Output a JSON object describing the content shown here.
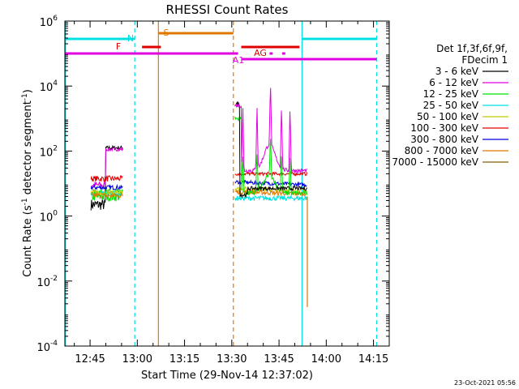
{
  "chart_data": {
    "type": "line",
    "title": "RHESSI Count Rates",
    "xlabel": "Start Time (29-Nov-14 12:37:02)",
    "ylabel_main": "Count Rate (s",
    "ylabel_sup1": "-1",
    "ylabel_mid": " detector segment",
    "ylabel_sup2": "-1",
    "ylabel_end": ")",
    "x_start_minutes": 757,
    "x_end_minutes": 860,
    "x_ticks": [
      {
        "label": "12:45",
        "minutes": 765
      },
      {
        "label": "13:00",
        "minutes": 780
      },
      {
        "label": "13:15",
        "minutes": 795
      },
      {
        "label": "13:30",
        "minutes": 810
      },
      {
        "label": "13:45",
        "minutes": 825
      },
      {
        "label": "14:00",
        "minutes": 840
      },
      {
        "label": "14:15",
        "minutes": 855
      }
    ],
    "ylog": true,
    "ylim_exp": [
      -4,
      6
    ],
    "y_ticks": [
      {
        "base": "10",
        "exp": "-4",
        "value_exp": -4
      },
      {
        "base": "10",
        "exp": "-2",
        "value_exp": -2
      },
      {
        "base": "10",
        "exp": "0",
        "value_exp": 0
      },
      {
        "base": "10",
        "exp": "2",
        "value_exp": 2
      },
      {
        "base": "10",
        "exp": "4",
        "value_exp": 4
      },
      {
        "base": "10",
        "exp": "6",
        "value_exp": 6
      }
    ],
    "legend_header": [
      "Det 1f,3f,6f,9f,",
      "FDecim 1"
    ],
    "series": [
      {
        "name": "3 - 6 keV",
        "color": "#000000"
      },
      {
        "name": "6 - 12 keV",
        "color": "#e000e0"
      },
      {
        "name": "12 - 25 keV",
        "color": "#00e000"
      },
      {
        "name": "25 - 50 keV",
        "color": "#00e0e0"
      },
      {
        "name": "50 - 100 keV",
        "color": "#c8c800"
      },
      {
        "name": "100 - 300 keV",
        "color": "#e00000"
      },
      {
        "name": "300 - 800 keV",
        "color": "#0000e0"
      },
      {
        "name": "800 - 7000 keV",
        "color": "#e07800"
      },
      {
        "name": "7000 - 15000 keV",
        "color": "#806000"
      }
    ],
    "flags": [
      {
        "label": "N",
        "color": "#00e0e0"
      },
      {
        "label": "F",
        "color": "#e00000"
      },
      {
        "label": "S",
        "color": "#e07800"
      },
      {
        "label": "AG",
        "color": "#e00000"
      },
      {
        "label": "A1",
        "color": "#e000e0"
      }
    ],
    "timestamp": "23-Oct-2021 05:56"
  }
}
